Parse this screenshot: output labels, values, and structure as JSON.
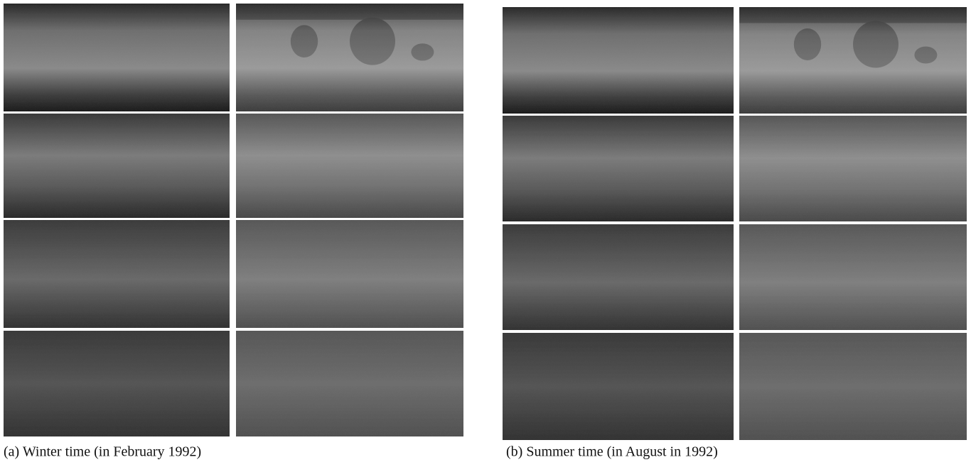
{
  "figure": {
    "subfigures": [
      {
        "caption": "(a) Winter time (in February 1992)"
      },
      {
        "caption": "(b) Summer time (in August in 1992)"
      }
    ]
  }
}
